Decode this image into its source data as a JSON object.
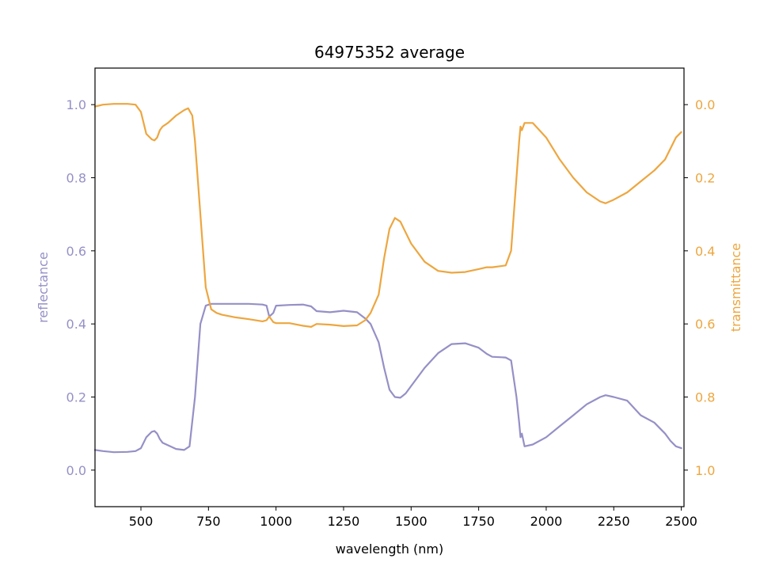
{
  "chart_data": {
    "type": "line",
    "title": "64975352 average",
    "xlabel": "wavelength (nm)",
    "ylabel_left": "reflectance",
    "ylabel_right": "transmittance",
    "xlim": [
      330,
      2510
    ],
    "ylim_left": [
      -0.1,
      1.1
    ],
    "ylim_right": [
      1.1,
      -0.1
    ],
    "xticks": [
      500,
      750,
      1000,
      1250,
      1500,
      1750,
      2000,
      2250,
      2500
    ],
    "yticks_left": [
      0.0,
      0.2,
      0.4,
      0.6,
      0.8,
      1.0
    ],
    "yticks_right": [
      0.0,
      0.2,
      0.4,
      0.6,
      0.8,
      1.0
    ],
    "grid": false,
    "legend": "none",
    "colors": {
      "reflectance": "#9590c6",
      "transmittance": "#eda63f",
      "axes": "#000000"
    },
    "series": [
      {
        "axis": "left",
        "color": "#9590c6",
        "x": [
          330,
          360,
          400,
          450,
          480,
          500,
          520,
          540,
          550,
          560,
          570,
          580,
          600,
          630,
          660,
          680,
          700,
          720,
          740,
          760,
          800,
          850,
          900,
          950,
          965,
          975,
          990,
          1000,
          1050,
          1100,
          1130,
          1150,
          1200,
          1250,
          1300,
          1330,
          1350,
          1380,
          1400,
          1420,
          1440,
          1460,
          1480,
          1500,
          1550,
          1600,
          1650,
          1700,
          1750,
          1780,
          1800,
          1850,
          1870,
          1880,
          1890,
          1900,
          1905,
          1910,
          1920,
          1950,
          2000,
          2050,
          2100,
          2150,
          2200,
          2220,
          2250,
          2300,
          2350,
          2400,
          2440,
          2460,
          2480,
          2500
        ],
        "y": [
          0.055,
          0.052,
          0.049,
          0.05,
          0.052,
          0.06,
          0.09,
          0.105,
          0.107,
          0.1,
          0.085,
          0.075,
          0.068,
          0.058,
          0.055,
          0.065,
          0.2,
          0.4,
          0.45,
          0.455,
          0.455,
          0.455,
          0.455,
          0.453,
          0.45,
          0.42,
          0.43,
          0.45,
          0.452,
          0.453,
          0.448,
          0.435,
          0.432,
          0.436,
          0.432,
          0.415,
          0.4,
          0.35,
          0.28,
          0.22,
          0.2,
          0.198,
          0.21,
          0.23,
          0.28,
          0.32,
          0.345,
          0.347,
          0.335,
          0.318,
          0.31,
          0.308,
          0.3,
          0.25,
          0.2,
          0.13,
          0.09,
          0.1,
          0.065,
          0.07,
          0.09,
          0.12,
          0.15,
          0.18,
          0.2,
          0.205,
          0.2,
          0.19,
          0.15,
          0.13,
          0.1,
          0.08,
          0.065,
          0.06
        ]
      },
      {
        "axis": "right",
        "color": "#eda63f",
        "x": [
          330,
          360,
          400,
          450,
          480,
          500,
          520,
          540,
          550,
          560,
          570,
          580,
          600,
          630,
          660,
          675,
          690,
          700,
          720,
          740,
          760,
          780,
          800,
          850,
          900,
          950,
          965,
          975,
          990,
          1000,
          1050,
          1100,
          1130,
          1150,
          1200,
          1250,
          1300,
          1330,
          1350,
          1380,
          1400,
          1420,
          1440,
          1460,
          1480,
          1500,
          1550,
          1600,
          1650,
          1700,
          1750,
          1780,
          1800,
          1850,
          1870,
          1880,
          1890,
          1900,
          1905,
          1910,
          1920,
          1950,
          2000,
          2050,
          2100,
          2150,
          2200,
          2220,
          2250,
          2300,
          2350,
          2400,
          2440,
          2460,
          2480,
          2500
        ],
        "y": [
          0.005,
          0.0,
          -0.002,
          -0.002,
          0.0,
          0.02,
          0.08,
          0.095,
          0.098,
          0.09,
          0.07,
          0.06,
          0.05,
          0.03,
          0.015,
          0.01,
          0.03,
          0.1,
          0.3,
          0.5,
          0.56,
          0.57,
          0.575,
          0.582,
          0.587,
          0.593,
          0.59,
          0.58,
          0.595,
          0.598,
          0.598,
          0.605,
          0.608,
          0.6,
          0.602,
          0.606,
          0.604,
          0.59,
          0.57,
          0.52,
          0.42,
          0.34,
          0.31,
          0.32,
          0.35,
          0.38,
          0.43,
          0.455,
          0.46,
          0.458,
          0.45,
          0.445,
          0.445,
          0.44,
          0.4,
          0.3,
          0.2,
          0.1,
          0.06,
          0.07,
          0.05,
          0.05,
          0.09,
          0.15,
          0.2,
          0.24,
          0.265,
          0.27,
          0.26,
          0.24,
          0.21,
          0.18,
          0.15,
          0.12,
          0.09,
          0.075
        ]
      }
    ]
  }
}
